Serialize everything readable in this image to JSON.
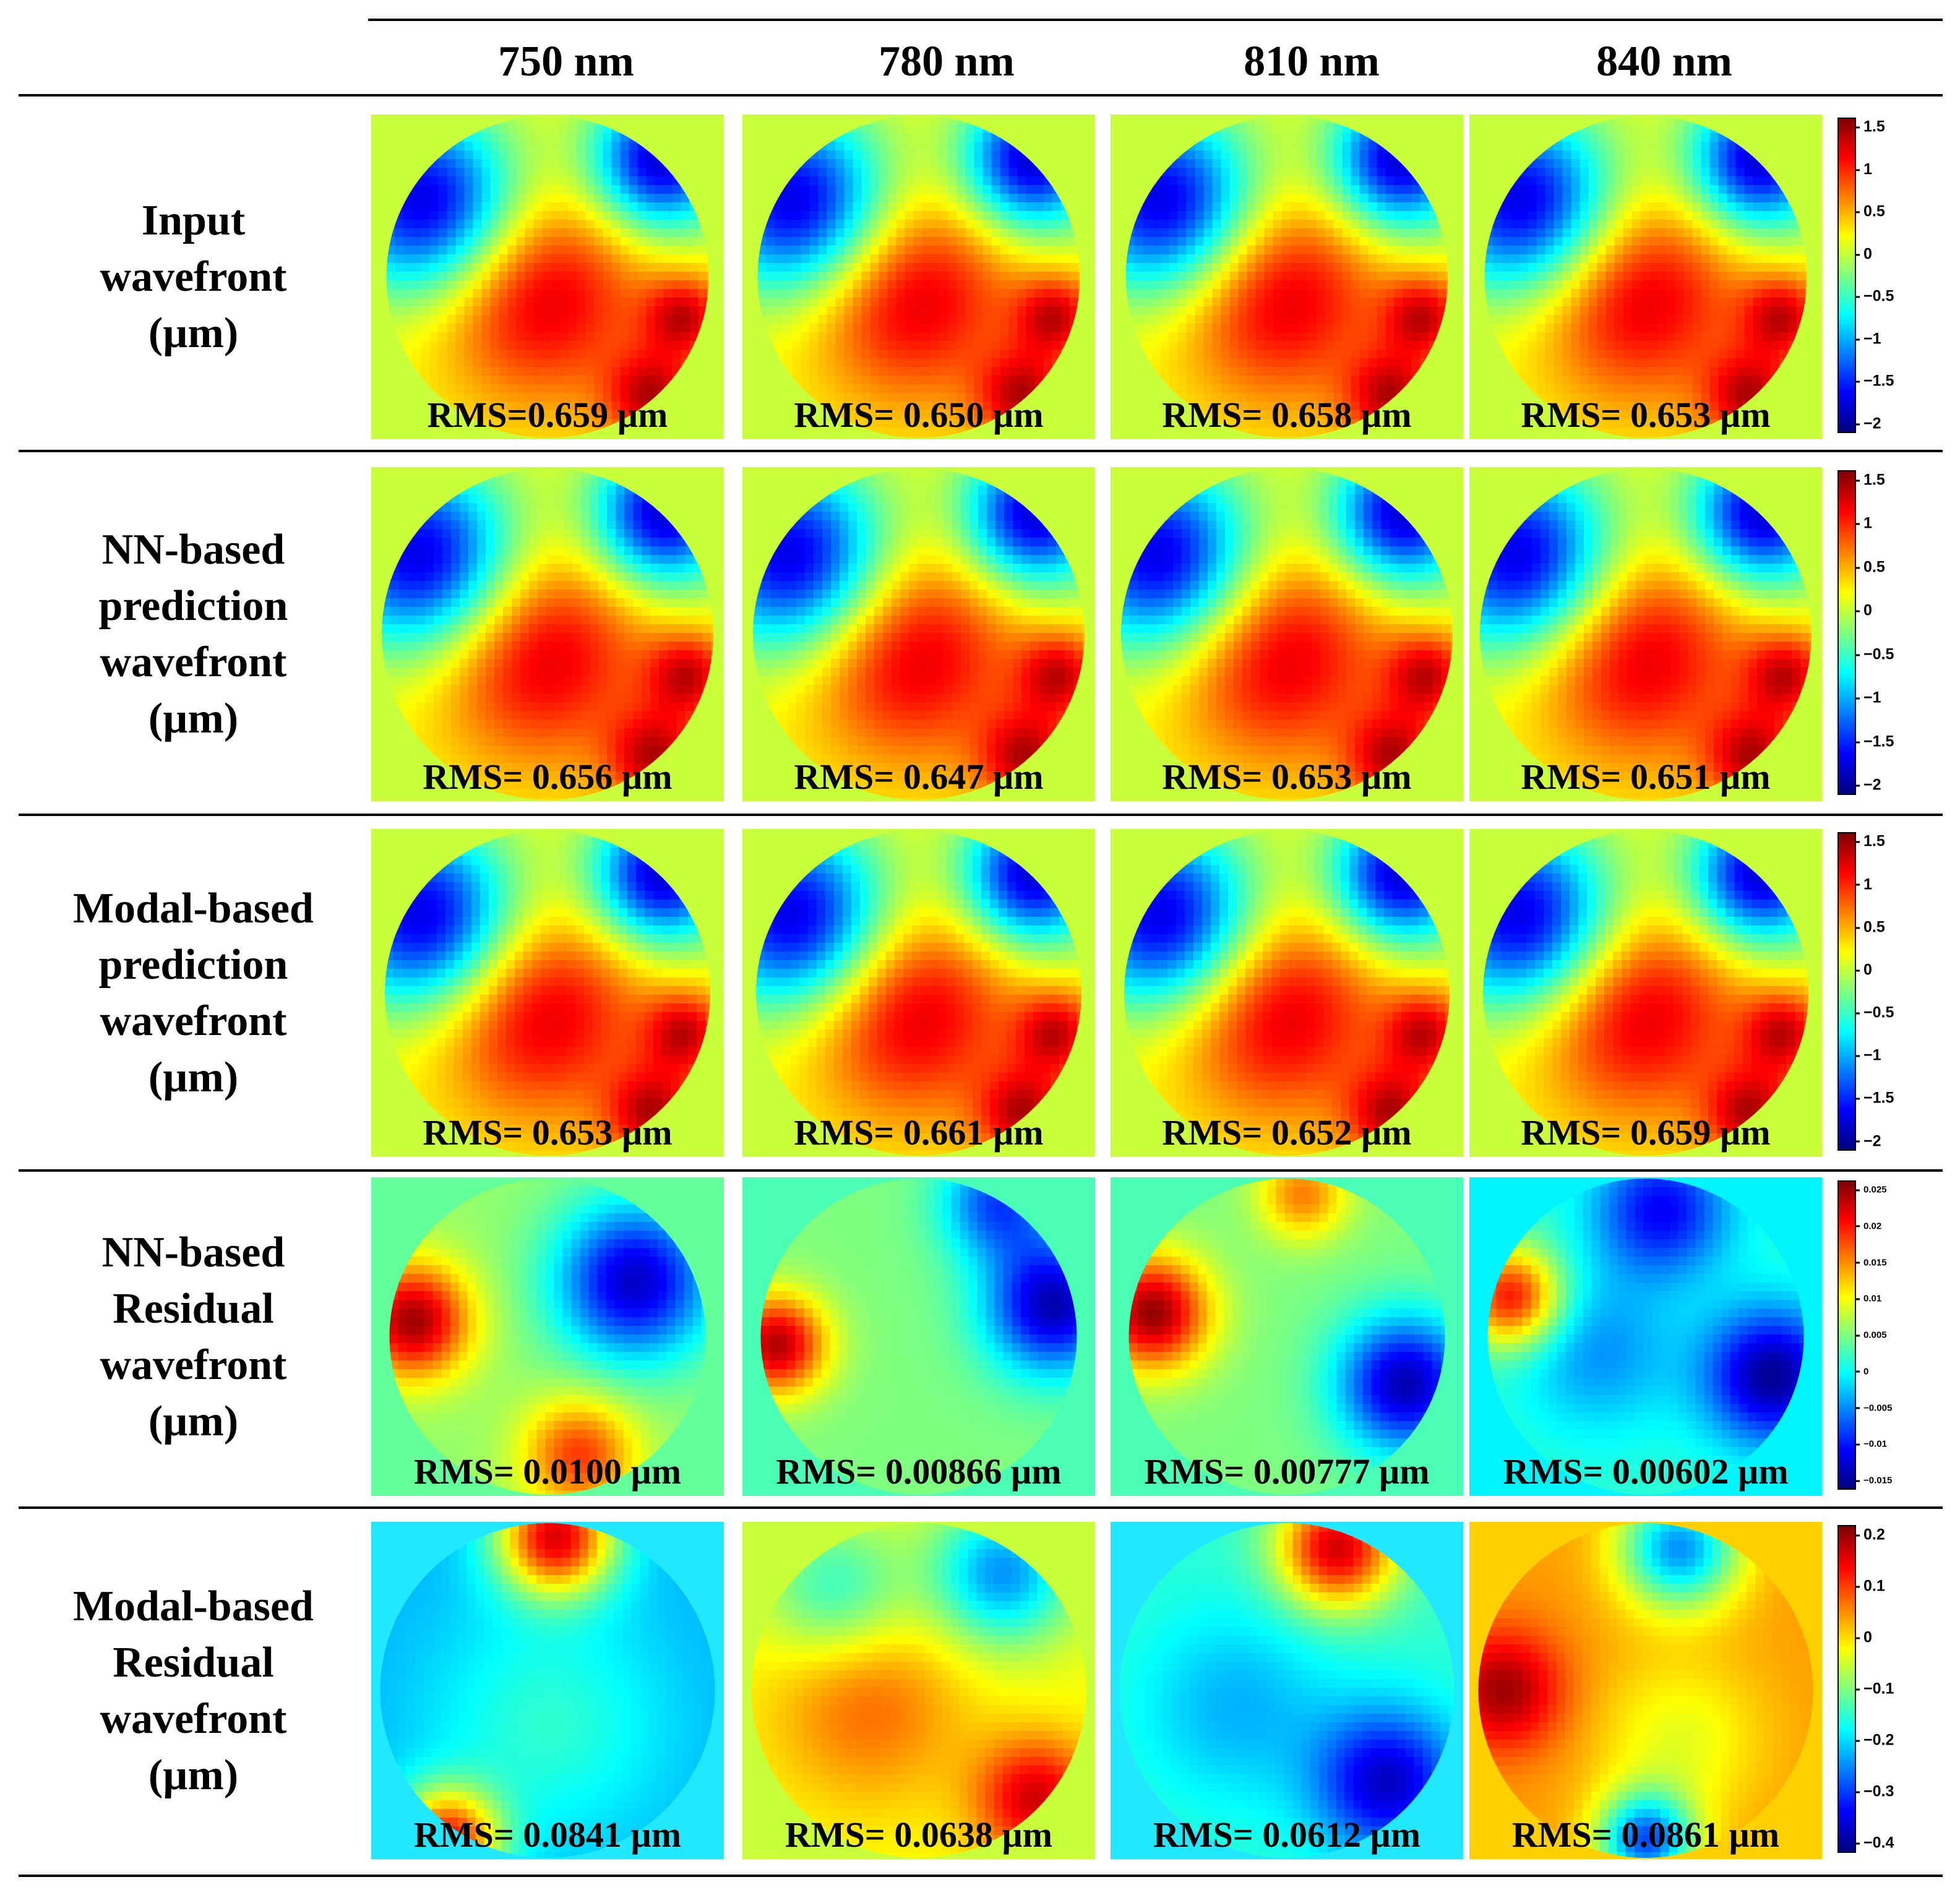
{
  "figure": {
    "columns": [
      "750 nm",
      "780 nm",
      "810 nm",
      "840 nm"
    ],
    "rows": [
      {
        "label": [
          "Input",
          "wavefront",
          "(µm)"
        ],
        "rms": [
          "RMS=0.659 µm",
          "RMS= 0.650 µm",
          "RMS= 0.658 µm",
          "RMS= 0.653 µm"
        ],
        "colorbar": {
          "ticks": [
            "1.5",
            "1",
            "0.5",
            "0",
            "−0.5",
            "−1",
            "−1.5",
            "−2"
          ]
        }
      },
      {
        "label": [
          "NN-based",
          "prediction",
          "wavefront",
          "(µm)"
        ],
        "rms": [
          "RMS= 0.656 µm",
          "RMS= 0.647 µm",
          "RMS= 0.653 µm",
          "RMS= 0.651 µm"
        ],
        "colorbar": {
          "ticks": [
            "1.5",
            "1",
            "0.5",
            "0",
            "−0.5",
            "−1",
            "−1.5",
            "−2"
          ]
        }
      },
      {
        "label": [
          "Modal-based",
          "prediction",
          "wavefront",
          "(µm)"
        ],
        "rms": [
          "RMS= 0.653 µm",
          "RMS= 0.661 µm",
          "RMS= 0.652 µm",
          "RMS= 0.659 µm"
        ],
        "colorbar": {
          "ticks": [
            "1.5",
            "1",
            "0.5",
            "0",
            "−0.5",
            "−1",
            "−1.5",
            "−2"
          ]
        }
      },
      {
        "label": [
          "NN-based",
          "Residual",
          "wavefront",
          "(µm)"
        ],
        "rms": [
          "RMS= 0.0100 µm",
          "RMS= 0.00866 µm",
          "RMS= 0.00777 µm",
          "RMS= 0.00602 µm"
        ],
        "colorbar": {
          "ticks": [
            "0.025",
            "0.02",
            "0.015",
            "0.01",
            "0.005",
            "0",
            "−0.005",
            "−0.01",
            "−0.015"
          ]
        }
      },
      {
        "label": [
          "Modal-based",
          "Residual",
          "wavefront",
          "(µm)"
        ],
        "rms": [
          "RMS= 0.0841 µm",
          "RMS= 0.0638 µm",
          "RMS= 0.0612 µm",
          "RMS= 0.0861 µm"
        ],
        "colorbar": {
          "ticks": [
            "0.2",
            "0.1",
            "0",
            "−0.1",
            "−0.2",
            "−0.3",
            "−0.4"
          ]
        }
      }
    ]
  }
}
